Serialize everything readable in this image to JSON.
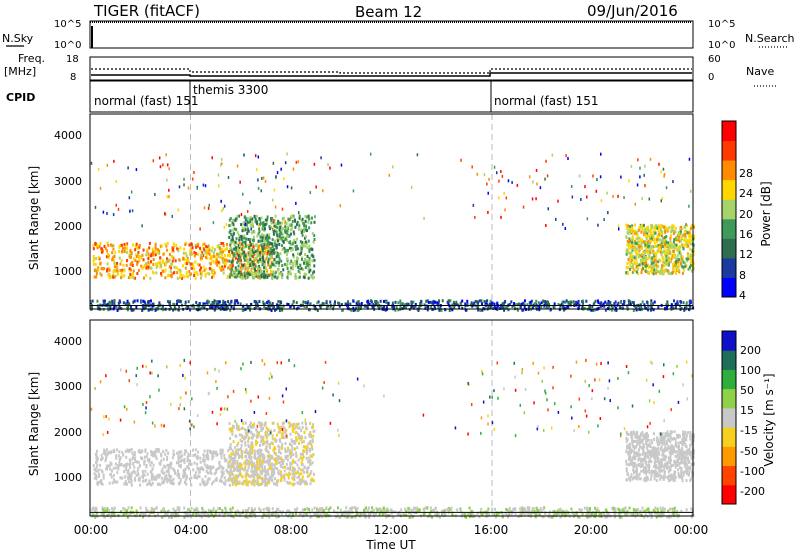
{
  "header": {
    "radar": "TIGER (fitACF)",
    "beam": "Beam 12",
    "date": "09/Jun/2016"
  },
  "nsky_panel": {
    "label": "N.Sky",
    "ticks_left": [
      "10^5",
      "10^0"
    ],
    "ticks_right": [
      "10^5",
      "10^0"
    ],
    "right_label": "N.Search"
  },
  "freq_panel": {
    "label_line1": "Freq.",
    "label_line2": "[MHz]",
    "ticks_left": [
      "18",
      "8"
    ],
    "ticks_right": [
      "60",
      "0"
    ],
    "right_label": "Nave"
  },
  "cpid_panel": {
    "label": "CPID",
    "segments": [
      {
        "start": 0,
        "end": 4.05,
        "text": "normal (fast) 151"
      },
      {
        "start": 4.05,
        "end": 16.0,
        "text": "themis 3300"
      },
      {
        "start": 16.0,
        "end": 24,
        "text": "normal (fast) 151"
      }
    ]
  },
  "power_panel": {
    "ylabel": "Slant Range [km]",
    "yticks": [
      "4000",
      "3000",
      "2000",
      "1000"
    ],
    "colorbar_label": "Power [dB]",
    "colorbar_ticks": [
      "28",
      "24",
      "20",
      "16",
      "12",
      "8",
      "4"
    ],
    "colors": [
      "#0000ff",
      "#1a3aa0",
      "#2e6e4e",
      "#3f9a5a",
      "#a8d36a",
      "#ffd700",
      "#ff8c00",
      "#ff3a00",
      "#ff0000"
    ]
  },
  "velocity_panel": {
    "ylabel": "Slant Range [km]",
    "yticks": [
      "4000",
      "3000",
      "2000",
      "1000"
    ],
    "colorbar_label": "Velocity [m s⁻¹]",
    "colorbar_ticks": [
      "200",
      "100",
      "50",
      "15",
      "-15",
      "-50",
      "-100",
      "-200"
    ],
    "colors": [
      "#1010c8",
      "#1e6e5a",
      "#2eae3a",
      "#8fd24a",
      "#c8c8c8",
      "#f5d020",
      "#ff9900",
      "#ff4400",
      "#ff0000"
    ]
  },
  "x_axis": {
    "ticks": [
      "00:00",
      "04:00",
      "08:00",
      "12:00",
      "16:00",
      "20:00",
      "00:00"
    ],
    "label": "Time UT"
  },
  "chart_data": {
    "type": "heatmap",
    "title": "TIGER (fitACF)",
    "x_range": [
      0,
      24
    ],
    "y_range": [
      180,
      4560
    ],
    "x_unit": "hours UT",
    "y_unit": "km",
    "gridlines_x": [
      4,
      16
    ],
    "scatter_regions": [
      {
        "x": [
          0.1,
          7.3
        ],
        "y": [
          900,
          1700
        ],
        "power": 22,
        "velocity": 0
      },
      {
        "x": [
          5.5,
          8.9
        ],
        "y": [
          900,
          2300
        ],
        "power": 12,
        "velocity": 20
      },
      {
        "x": [
          21.3,
          24
        ],
        "y": [
          1000,
          2100
        ],
        "power": 18,
        "velocity": 0
      },
      {
        "x": [
          0,
          24
        ],
        "y": [
          180,
          400
        ],
        "power": 6,
        "velocity": -20
      }
    ]
  }
}
